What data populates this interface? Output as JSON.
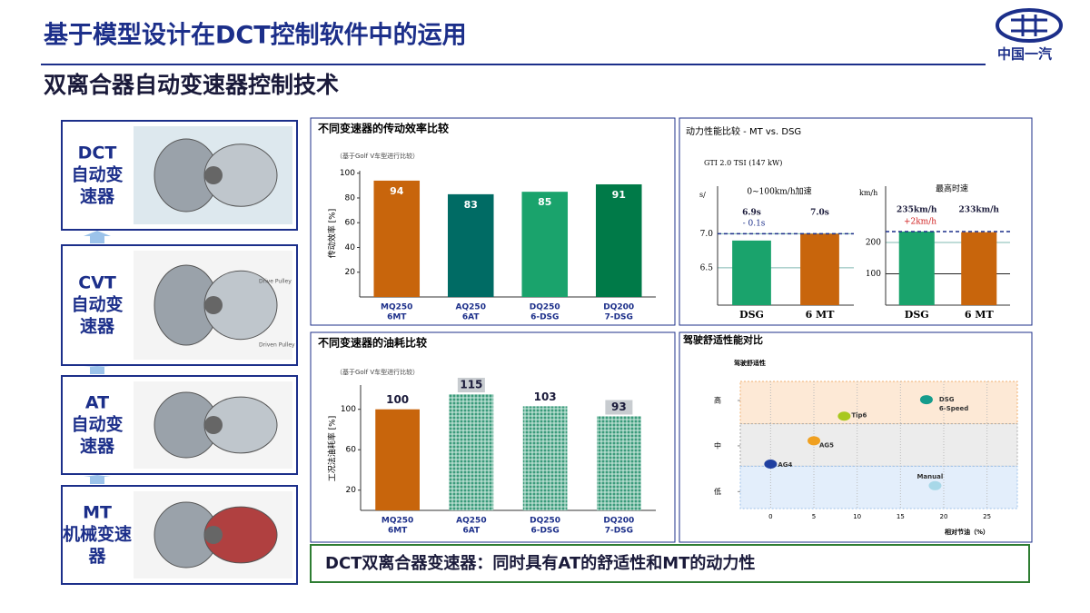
{
  "header": {
    "title": "基于模型设计在DCT控制软件中的运用",
    "subtitle": "双离合器自动变速器控制技术",
    "logo": "中国一汽"
  },
  "stages": [
    {
      "lines": [
        "DCT",
        "自动变",
        "速器"
      ]
    },
    {
      "lines": [
        "CVT",
        "自动变",
        "速器"
      ],
      "image_labels": [
        "Drive Pulley",
        "Driven Pulley"
      ]
    },
    {
      "lines": [
        "AT",
        "自动变",
        "速器"
      ]
    },
    {
      "lines": [
        "MT",
        "机械变速",
        "器"
      ]
    }
  ],
  "efficiency": {
    "type": "bar",
    "title": "不同变速器的传动效率比较",
    "subtitle": "（基于Golf V车型进行比较）",
    "ylabel": "传动效率 [%]",
    "categories": [
      [
        "MQ250",
        "6MT"
      ],
      [
        "AQ250",
        "6AT"
      ],
      [
        "DQ250",
        "6-DSG"
      ],
      [
        "DQ200",
        "7-DSG"
      ]
    ],
    "values": [
      94,
      83,
      85,
      91
    ],
    "colors": [
      "#c8650c",
      "#006b64",
      "#1aa36c",
      "#007a48"
    ],
    "label_position": "inside",
    "ylim": [
      0,
      102
    ],
    "yticks": [
      20,
      40,
      60,
      80,
      100
    ]
  },
  "fuel": {
    "type": "bar",
    "title": "不同变速器的油耗比较",
    "subtitle": "（基于Golf V车型进行比较）",
    "ylabel": "工况法油耗率 [%]",
    "categories": [
      [
        "MQ250",
        "6MT"
      ],
      [
        "AQ250",
        "6AT"
      ],
      [
        "DQ250",
        "6-DSG"
      ],
      [
        "DQ200",
        "7-DSG"
      ]
    ],
    "values": [
      100,
      115,
      103,
      93
    ],
    "colors": [
      "#c8650c",
      "#3a9a7a",
      "#3a9a7a",
      "#3a9a7a"
    ],
    "hatched": [
      false,
      true,
      true,
      true
    ],
    "label_boxes": [
      false,
      true,
      false,
      true
    ],
    "label_position": "above",
    "ylim": [
      0,
      124
    ],
    "yticks": [
      20,
      60,
      100
    ]
  },
  "performance": {
    "title": "动力性能比较 - MT vs. DSG",
    "subtitle": "GTI 2.0 TSI (147 kW)",
    "charts": [
      {
        "type": "bar",
        "title": "0~100km/h加速",
        "unit": "s/",
        "categories": [
          "DSG",
          "6 MT"
        ],
        "values": [
          6.9,
          7.0
        ],
        "value_labels": [
          "6.9s",
          "7.0s"
        ],
        "annotation": "- 0.1s",
        "colors": [
          "#1aa36c",
          "#c8650c"
        ],
        "ylim": [
          5.95,
          7.7
        ],
        "yticks": [
          {
            "value": 7,
            "label": "7.0"
          },
          6.5
        ]
      },
      {
        "type": "bar",
        "title": "最高时速",
        "unit": "km/h",
        "categories": [
          "DSG",
          "6 MT"
        ],
        "values": [
          235,
          233
        ],
        "value_labels": [
          "235km/h",
          "233km/h"
        ],
        "annotation": "+2km/h",
        "colors": [
          "#1aa36c",
          "#c8650c"
        ],
        "ylim": [
          0,
          380
        ],
        "yticks": [
          100,
          200
        ]
      }
    ]
  },
  "comfort": {
    "type": "scatter",
    "title": "驾驶舒适性能对比",
    "ylabel": "驾驶舒适性",
    "xlabel": "相对节油（%）",
    "xlim": [
      -3.5,
      28.5
    ],
    "xticks": [
      0,
      5,
      10,
      15,
      20,
      25
    ],
    "ylim": [
      0,
      3
    ],
    "yticks": [
      {
        "value": 2.55,
        "label": "高"
      },
      {
        "value": 1.48,
        "label": "中"
      },
      {
        "value": 0.4,
        "label": "低"
      }
    ],
    "points": [
      {
        "name_lines": [
          "DSG",
          "6-Speed"
        ],
        "x": 18,
        "y": 2.57,
        "color": "#159c8c"
      },
      {
        "name_lines": [
          "Tip6"
        ],
        "x": 8.5,
        "y": 2.18,
        "color": "#a8c81e"
      },
      {
        "name_lines": [
          "AG5"
        ],
        "x": 5,
        "y": 1.6,
        "color": "#f0a020"
      },
      {
        "name_lines": [
          "AG4"
        ],
        "x": 0,
        "y": 1.05,
        "color": "#2040a0"
      },
      {
        "name_lines": [
          "Manual"
        ],
        "x": 19,
        "y": 0.54,
        "color": "#a8d8e8"
      }
    ]
  },
  "conclusion": "DCT双离合器变速器：同时具有AT的舒适性和MT的动力性"
}
